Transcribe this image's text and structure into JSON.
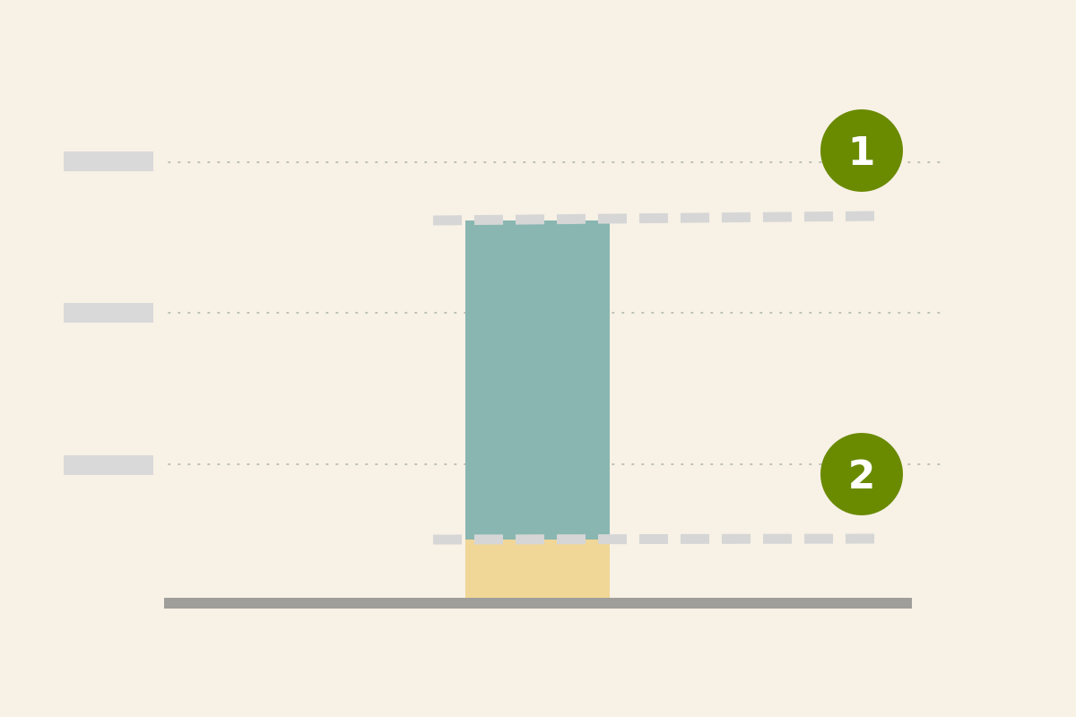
{
  "diagram": {
    "colors": {
      "background": "#f7f1e6",
      "label_placeholder": "#d9d9d9",
      "gridline": "#a9b0a6",
      "bar_upper": "#89b6b1",
      "bar_lower": "#f0d697",
      "dashed_marker": "#d6d6d6",
      "baseline": "#a09e9b",
      "badge": "#6a8a00",
      "badge_text": "#ffffff"
    },
    "badges": [
      {
        "label": "1"
      },
      {
        "label": "2"
      }
    ]
  }
}
